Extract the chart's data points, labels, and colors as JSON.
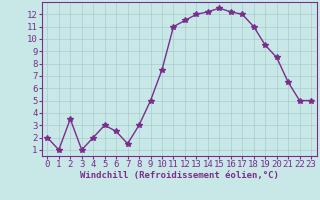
{
  "x": [
    0,
    1,
    2,
    3,
    4,
    5,
    6,
    7,
    8,
    9,
    10,
    11,
    12,
    13,
    14,
    15,
    16,
    17,
    18,
    19,
    20,
    21,
    22,
    23
  ],
  "y": [
    2,
    1,
    3.5,
    1,
    2,
    3,
    2.5,
    1.5,
    3,
    5,
    7.5,
    11,
    11.5,
    12,
    12.2,
    12.5,
    12.2,
    12,
    11,
    9.5,
    8.5,
    6.5,
    5,
    5
  ],
  "line_color": "#7B2D8B",
  "marker": "*",
  "marker_size": 4,
  "bg_color": "#C8E8E8",
  "grid_color": "#AACCCC",
  "xlabel": "Windchill (Refroidissement éolien,°C)",
  "xlabel_fontsize": 6.5,
  "tick_fontsize": 6.5,
  "xlim": [
    -0.5,
    23.5
  ],
  "ylim": [
    0.5,
    13
  ],
  "yticks": [
    1,
    2,
    3,
    4,
    5,
    6,
    7,
    8,
    9,
    10,
    11,
    12
  ],
  "xticks": [
    0,
    1,
    2,
    3,
    4,
    5,
    6,
    7,
    8,
    9,
    10,
    11,
    12,
    13,
    14,
    15,
    16,
    17,
    18,
    19,
    20,
    21,
    22,
    23
  ],
  "spine_color": "#7B2D8B",
  "linewidth": 1.0
}
